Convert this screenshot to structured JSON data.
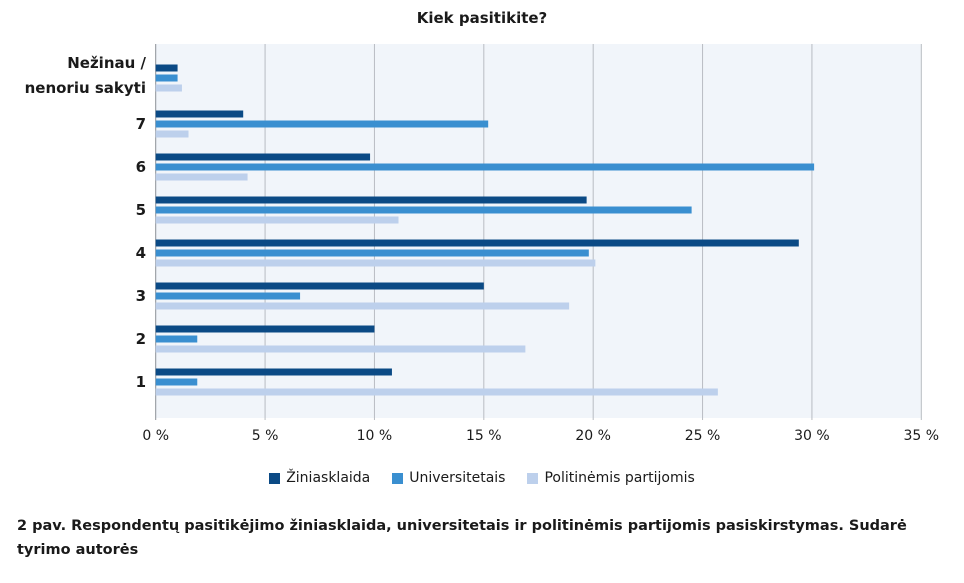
{
  "chart_data": {
    "type": "bar",
    "orientation": "horizontal",
    "title": "Kiek pasitikite?",
    "categories": [
      "Nežinau / nenoriu sakyti",
      "7",
      "6",
      "5",
      "4",
      "3",
      "2",
      "1"
    ],
    "series": [
      {
        "name": "Žiniasklaida",
        "color": "#0b4a85",
        "values": [
          1.0,
          4.0,
          9.8,
          19.7,
          29.4,
          15.0,
          10.0,
          10.8
        ]
      },
      {
        "name": "Universitetais",
        "color": "#3a8fd0",
        "values": [
          1.0,
          15.2,
          30.1,
          24.5,
          19.8,
          6.6,
          1.9,
          1.9
        ]
      },
      {
        "name": "Politinėmis partijomis",
        "color": "#bdd0ec",
        "values": [
          1.2,
          1.5,
          4.2,
          11.1,
          20.1,
          18.9,
          16.9,
          25.7
        ]
      }
    ],
    "xlim": [
      0,
      35
    ],
    "xticks": [
      "0 %",
      "5 %",
      "10 %",
      "15 %",
      "20 %",
      "25 %",
      "30 %",
      "35 %"
    ],
    "grid": true,
    "legend": "bottom",
    "plot_background": "#f1f5fa"
  },
  "caption": "2 pav. Respondentų pasitikėjimo žiniasklaida, universitetais ir politinėmis partijomis pasiskirstymas. Sudarė tyrimo autorės"
}
